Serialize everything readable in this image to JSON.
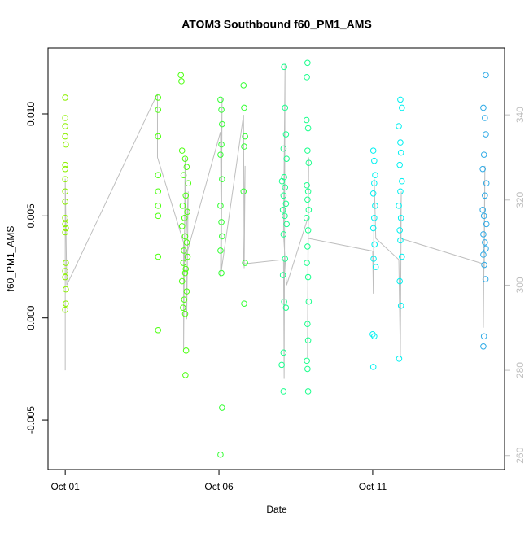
{
  "chart_data": {
    "type": "scatter",
    "title": "ATOM3 Southbound f60_PM1_AMS",
    "x_label": "Date",
    "y_label": "f60_PM1_AMS",
    "xlim": [
      0.44,
      15.29
    ],
    "xticks": [
      {
        "value": 1,
        "label": "Oct 01"
      },
      {
        "value": 6,
        "label": "Oct 06"
      },
      {
        "value": 11,
        "label": "Oct 11"
      }
    ],
    "ylim": [
      -0.00743,
      0.01323
    ],
    "yticks": [
      -0.005,
      {
        "value": 0,
        "label": "0.000"
      },
      0.005,
      {
        "value": 0.01,
        "label": "0.010"
      }
    ],
    "y2lim": [
      256.7,
      355.7
    ],
    "y2ticks": [
      260,
      280,
      300,
      320,
      340
    ],
    "y2_color": "#bebebe",
    "series": [
      {
        "color": "#8cf000",
        "x": [
          1,
          1,
          1,
          1,
          1.02,
          1,
          1,
          1,
          1,
          1,
          1,
          1,
          1.02,
          1,
          1.02,
          1,
          1,
          1.02,
          1.02,
          1
        ],
        "values": [
          0.0108,
          0.0098,
          0.0094,
          0.0089,
          0.0085,
          0.0075,
          0.0073,
          0.0068,
          0.0062,
          0.0057,
          0.0049,
          0.0046,
          0.0044,
          0.0042,
          0.0027,
          0.0023,
          0.002,
          0.0014,
          0.0007,
          0.0004
        ]
      },
      {
        "color": "#4cff10",
        "x": [
          4.02,
          4.02,
          4.02,
          4.02,
          4.02,
          4.02,
          4.02,
          4.02,
          4.02,
          4.76,
          4.78,
          4.8,
          4.9,
          4.95,
          4.85,
          5.0,
          4.92,
          4.82,
          4.97,
          4.88,
          4.8,
          4.9,
          4.95,
          4.86,
          4.98,
          4.84,
          4.92,
          4.9,
          4.8,
          4.95,
          4.87,
          4.83,
          4.9,
          4.93,
          4.91
        ],
        "values": [
          0.0108,
          0.0102,
          0.0089,
          0.007,
          0.0062,
          0.0055,
          0.005,
          0.003,
          -0.0006,
          0.0119,
          0.0116,
          0.0082,
          0.0078,
          0.0074,
          0.007,
          0.0066,
          0.006,
          0.0055,
          0.0052,
          0.0049,
          0.0045,
          0.004,
          0.0037,
          0.0033,
          0.003,
          0.0027,
          0.0024,
          0.0022,
          0.0018,
          0.0013,
          0.0009,
          0.0005,
          0.0002,
          -0.0016,
          -0.0028
        ]
      },
      {
        "color": "#33ff33",
        "x": [
          6.05,
          6.08,
          6.1,
          6.08,
          6.05,
          6.1,
          6.05,
          6.08,
          6.1,
          6.05,
          6.08,
          6.1,
          6.05,
          6.8,
          6.82,
          6.85,
          6.82,
          6.8,
          6.85,
          6.82
        ],
        "values": [
          0.0107,
          0.0102,
          0.0095,
          0.0085,
          0.008,
          0.0068,
          0.0055,
          0.0047,
          0.004,
          0.0033,
          0.0022,
          -0.0044,
          -0.0067,
          0.0114,
          0.0103,
          0.0089,
          0.0084,
          0.0062,
          0.0027,
          0.0007
        ]
      },
      {
        "color": "#1aff8c",
        "x": [
          8.12,
          8.15,
          8.18,
          8.1,
          8.2,
          8.12,
          8.05,
          8.15,
          8.1,
          8.18,
          8.08,
          8.14,
          8.2,
          8.1,
          8.15,
          8.08,
          8.12,
          8.18,
          8.1,
          8.04,
          8.1,
          8.88,
          8.86,
          8.85,
          8.9,
          8.88,
          8.92,
          8.86,
          8.9,
          8.88,
          8.92,
          8.85,
          8.9,
          8.88,
          8.86,
          8.9,
          8.92,
          8.88,
          8.9,
          8.86,
          8.88,
          8.9
        ],
        "values": [
          0.0123,
          0.0103,
          0.009,
          0.0083,
          0.0078,
          0.0069,
          0.0067,
          0.0064,
          0.006,
          0.0056,
          0.0053,
          0.005,
          0.0046,
          0.0041,
          0.0029,
          0.0021,
          0.0008,
          0.0005,
          -0.0017,
          -0.0023,
          -0.0036,
          0.0125,
          0.0118,
          0.0097,
          0.0093,
          0.0082,
          0.0076,
          0.0065,
          0.0062,
          0.0058,
          0.0053,
          0.0049,
          0.0043,
          0.0035,
          0.0027,
          0.002,
          0.0008,
          -0.0003,
          -0.0011,
          -0.0021,
          -0.0025,
          -0.0036
        ]
      },
      {
        "color": "#00f0f0",
        "x": [
          11.02,
          11.05,
          11.08,
          11.05,
          11.02,
          11.08,
          11.05,
          11.02,
          11.06,
          11.03,
          11.1,
          11.0,
          11.05,
          11.02,
          11.9,
          11.95,
          11.85,
          11.9,
          11.92,
          11.88,
          11.95,
          11.9,
          11.85,
          11.92,
          11.88,
          11.9,
          11.95,
          11.88,
          11.92,
          11.86
        ],
        "values": [
          0.0082,
          0.0077,
          0.007,
          0.0066,
          0.0061,
          0.0055,
          0.0049,
          0.0044,
          0.0036,
          0.0029,
          0.0025,
          -0.0008,
          -0.0009,
          -0.0024,
          0.0107,
          0.0103,
          0.0094,
          0.0086,
          0.0081,
          0.0075,
          0.0067,
          0.0062,
          0.0055,
          0.0049,
          0.0043,
          0.0038,
          0.003,
          0.0018,
          0.0006,
          -0.002
        ]
      },
      {
        "color": "#2eaae6",
        "x": [
          14.68,
          14.6,
          14.65,
          14.68,
          14.62,
          14.58,
          14.7,
          14.65,
          14.58,
          14.62,
          14.7,
          14.6,
          14.65,
          14.68,
          14.6,
          14.63,
          14.67,
          14.62,
          14.6
        ],
        "values": [
          0.0119,
          0.0103,
          0.0098,
          0.009,
          0.008,
          0.0073,
          0.0066,
          0.006,
          0.0053,
          0.005,
          0.0046,
          0.0041,
          0.0037,
          0.0034,
          0.0031,
          0.0026,
          0.0019,
          -0.0009,
          -0.0014
        ]
      },
      {
        "type": "line",
        "axis": "y2",
        "color": "#bebebe",
        "x": [
          1.0,
          1.0,
          1.0,
          1.05,
          4.0,
          4.0,
          4.85,
          4.85,
          4.9,
          4.95,
          5.0,
          4.9,
          6.05,
          6.08,
          6.1,
          6.05,
          6.8,
          6.82,
          6.85,
          6.8,
          8.1,
          8.12,
          8.15,
          8.1,
          8.2,
          8.9,
          8.88,
          8.92,
          8.9,
          11.0,
          11.02,
          11.05,
          11.1,
          11.85,
          11.9,
          11.93,
          11.9,
          14.6,
          14.6,
          14.65,
          14.63
        ],
        "values": [
          318,
          280,
          325,
          300,
          345,
          330,
          310,
          285,
          330,
          292,
          322,
          306,
          336,
          304,
          344,
          302,
          340,
          304,
          328,
          305,
          306,
          278,
          352,
          312,
          300,
          316,
          283,
          330,
          311,
          308,
          298,
          325,
          311,
          306,
          283,
          322,
          311,
          305,
          290,
          328,
          304
        ]
      }
    ]
  }
}
